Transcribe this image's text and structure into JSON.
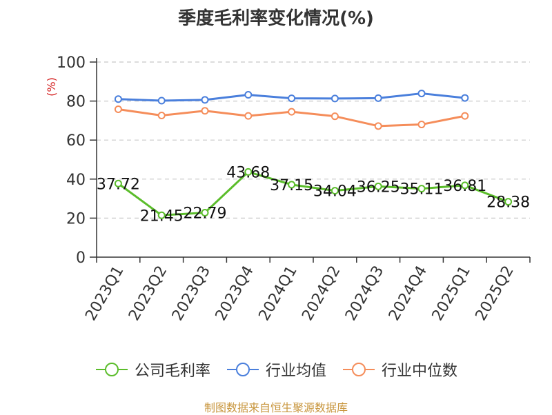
{
  "chart_data": {
    "type": "line",
    "title": "季度毛利率变化情况(%)",
    "ylabel": "(%)",
    "ylim": [
      0,
      100
    ],
    "yticks": [
      0,
      20,
      40,
      60,
      80,
      100
    ],
    "grid": true,
    "legend_position": "bottom",
    "categories": [
      "2023Q1",
      "2023Q2",
      "2023Q3",
      "2023Q4",
      "2024Q1",
      "2024Q2",
      "2024Q3",
      "2024Q4",
      "2025Q1",
      "2025Q2"
    ],
    "series": [
      {
        "name": "公司毛利率",
        "color": "#5bbd2b",
        "values": [
          37.72,
          21.45,
          22.79,
          43.68,
          37.15,
          34.04,
          36.25,
          35.11,
          36.81,
          28.38
        ],
        "labels": [
          "37.72",
          "21.45",
          "22.79",
          "43.68",
          "37.15",
          "34.04",
          "36.25",
          "35.11",
          "36.81",
          "28.38"
        ]
      },
      {
        "name": "行业均值",
        "color": "#4a7fdc",
        "values": [
          81.0,
          80.2,
          80.6,
          83.2,
          81.4,
          81.3,
          81.5,
          83.9,
          81.6,
          null
        ]
      },
      {
        "name": "行业中位数",
        "color": "#f58d5a",
        "values": [
          75.8,
          72.6,
          75.0,
          72.4,
          74.5,
          72.2,
          67.2,
          68.0,
          72.4,
          null
        ]
      }
    ]
  },
  "source_text": "制图数据来自恒生聚源数据库"
}
